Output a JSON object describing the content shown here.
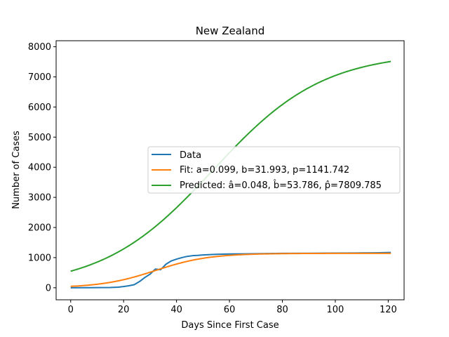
{
  "chart_data": {
    "type": "line",
    "title": "New Zealand",
    "xlabel": "Days Since First Case",
    "ylabel": "Number of Cases",
    "xlim": [
      -5.5,
      126
    ],
    "ylim": [
      -400,
      8200
    ],
    "xticks": [
      0,
      20,
      40,
      60,
      80,
      100,
      120
    ],
    "yticks": [
      0,
      1000,
      2000,
      3000,
      4000,
      5000,
      6000,
      7000,
      8000
    ],
    "grid": false,
    "legend_position": "center-right",
    "series": [
      {
        "name": "Data",
        "color": "#1f77b4",
        "x": [
          0,
          5,
          10,
          15,
          18,
          20,
          22,
          24,
          26,
          28,
          30,
          32,
          34,
          36,
          38,
          40,
          42,
          44,
          46,
          48,
          50,
          55,
          60,
          65,
          70,
          80,
          90,
          100,
          110,
          115,
          121
        ],
        "y": [
          0,
          2,
          5,
          8,
          20,
          39,
          66,
          102,
          205,
          338,
          451,
          620,
          600,
          780,
          890,
          950,
          1000,
          1040,
          1064,
          1075,
          1090,
          1110,
          1120,
          1125,
          1130,
          1140,
          1145,
          1150,
          1155,
          1160,
          1170
        ]
      },
      {
        "name": "Fit: a=0.099, b=31.993, p=1141.742",
        "color": "#ff7f0e",
        "model": {
          "a": 0.099,
          "b": 31.993,
          "p": 1141.742
        },
        "x_range": [
          0,
          121
        ]
      },
      {
        "name": "Predicted: â=0.048, b̂=53.786, p̂=7809.785",
        "color": "#2ca02c",
        "model": {
          "a": 0.048,
          "b": 53.786,
          "p": 7809.785
        },
        "x_range": [
          0,
          121
        ]
      }
    ]
  }
}
